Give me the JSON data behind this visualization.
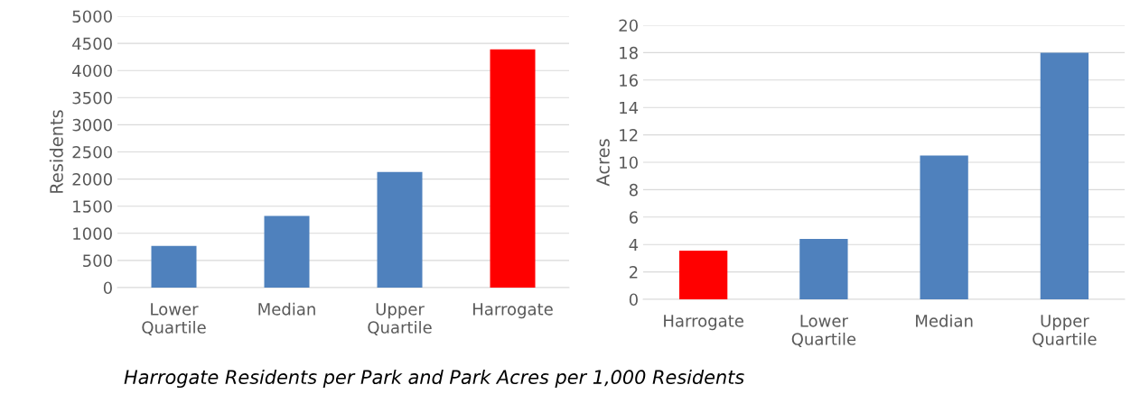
{
  "chart_data": [
    {
      "type": "bar",
      "categories": [
        "Lower\nQuartile",
        "Median",
        "Upper\nQuartile",
        "Harrogate"
      ],
      "values": [
        770,
        1320,
        2130,
        4390
      ],
      "colors": [
        "#4f81bd",
        "#4f81bd",
        "#4f81bd",
        "#ff0000"
      ],
      "ylabel": "Residents",
      "ylim": [
        0,
        5000
      ],
      "yticks": [
        0,
        500,
        1000,
        1500,
        2000,
        2500,
        3000,
        3500,
        4000,
        4500,
        5000
      ],
      "grid": "y",
      "annotations": [
        "Harrogate Residents per Park and Park Acres per 1,000 Residents"
      ]
    },
    {
      "type": "bar",
      "categories": [
        "Harrogate",
        "Lower\nQuartile",
        "Median",
        "Upper\nQuartile"
      ],
      "values": [
        3.55,
        4.4,
        10.5,
        18
      ],
      "colors": [
        "#ff0000",
        "#4f81bd",
        "#4f81bd",
        "#4f81bd"
      ],
      "ylabel": "Acres",
      "ylim": [
        0,
        20
      ],
      "yticks": [
        0,
        2,
        4,
        6,
        8,
        10,
        12,
        14,
        16,
        18,
        20
      ],
      "grid": "y"
    }
  ]
}
